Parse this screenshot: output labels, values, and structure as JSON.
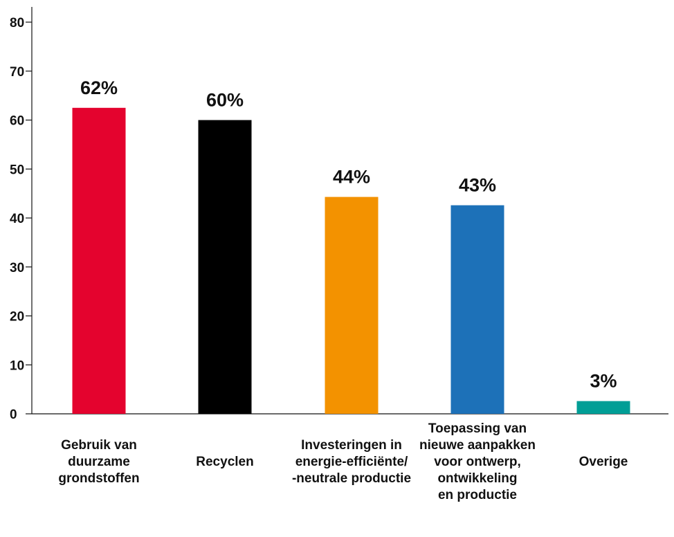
{
  "chart_data": {
    "type": "bar",
    "title": "",
    "xlabel": "",
    "ylabel": "",
    "ylim": [
      0,
      80
    ],
    "yticks": [
      0,
      10,
      20,
      30,
      40,
      50,
      60,
      70,
      80
    ],
    "grid": false,
    "categories": [
      [
        "Gebruik van",
        "duurzame",
        "grondstoffen"
      ],
      [
        "Recyclen"
      ],
      [
        "Investeringen in",
        "energie-efficiënte/",
        "-neutrale productie"
      ],
      [
        "Toepassing van",
        "nieuwe aanpakken",
        "voor ontwerp,",
        "ontwikkeling",
        "en productie"
      ],
      [
        "Overige"
      ]
    ],
    "values": [
      62.5,
      60,
      44.3,
      42.6,
      2.6
    ],
    "data_labels": [
      "62%",
      "60%",
      "44%",
      "43%",
      "3%"
    ],
    "colors": [
      "#e4032e",
      "#000000",
      "#f39200",
      "#1d71b8",
      "#009e96"
    ]
  }
}
